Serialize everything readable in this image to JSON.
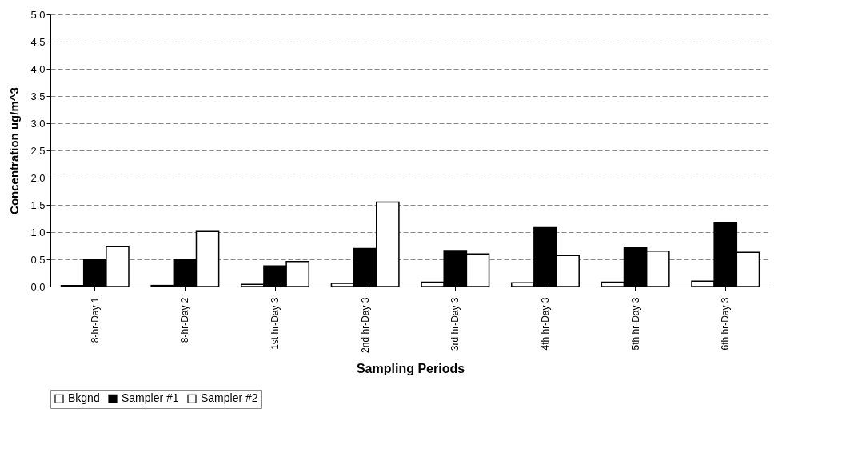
{
  "chart_data": {
    "type": "bar",
    "xlabel": "Sampling Periods",
    "ylabel": "Concentration ug/m^3",
    "categories": [
      "8-hr-Day 1",
      "8-hr-Day 2",
      "1st hr-Day 3",
      "2nd hr-Day 3",
      "3rd hr-Day 3",
      "4th hr-Day 3",
      "5th hr-Day 3",
      "6th hr-Day 3"
    ],
    "series": [
      {
        "name": "Bkgnd",
        "color": "#ffffff",
        "values": [
          0.02,
          0.02,
          0.04,
          0.06,
          0.08,
          0.07,
          0.08,
          0.1
        ]
      },
      {
        "name": "Sampler #1",
        "color": "#000000",
        "values": [
          0.49,
          0.5,
          0.38,
          0.7,
          0.66,
          1.08,
          0.71,
          1.18
        ]
      },
      {
        "name": "Sampler #2",
        "color": "#ffffff",
        "values": [
          0.74,
          1.01,
          0.46,
          1.55,
          0.6,
          0.57,
          0.65,
          0.63
        ]
      }
    ],
    "ylim": [
      0,
      5
    ],
    "yticks": [
      {
        "value": 0,
        "label": "0.0"
      },
      0.5,
      {
        "value": 1,
        "label": "1.0"
      },
      1.5,
      {
        "value": 2,
        "label": "2.0"
      },
      2.5,
      {
        "value": 3,
        "label": "3.0"
      },
      3.5,
      {
        "value": 4,
        "label": "4.0"
      },
      4.5,
      {
        "value": 5,
        "label": "5.0"
      }
    ],
    "grid": "y",
    "legend": "bottom"
  }
}
